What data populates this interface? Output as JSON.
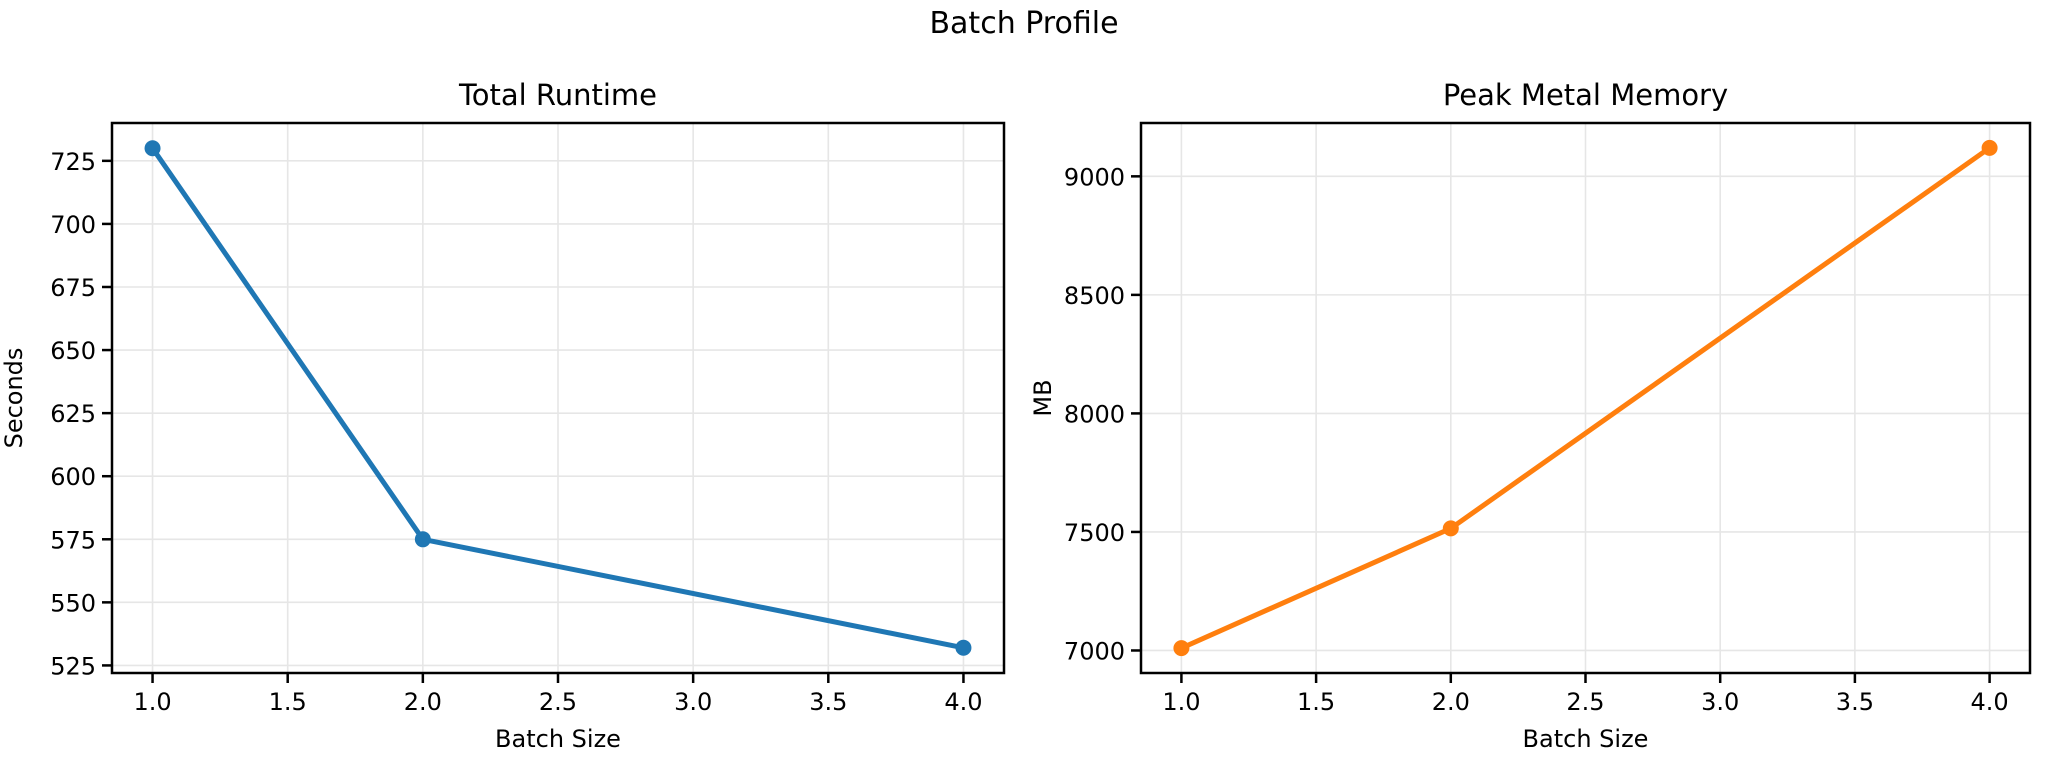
{
  "figure": {
    "suptitle": "Batch Profile",
    "background": "#ffffff",
    "text_color": "#000000",
    "grid_color": "#e6e6e6",
    "spine_color": "#000000"
  },
  "chart_data": [
    {
      "type": "line",
      "title": "Total Runtime",
      "xlabel": "Batch Size",
      "ylabel": "Seconds",
      "x": [
        1,
        2,
        4
      ],
      "y": [
        730,
        575,
        532
      ],
      "series_color": "#1f77b4",
      "marker": "circle",
      "grid": true,
      "legend": null,
      "xlim": [
        0.85,
        4.15
      ],
      "ylim": [
        522,
        740
      ],
      "xticks": [
        1.0,
        1.5,
        2.0,
        2.5,
        3.0,
        3.5,
        4.0
      ],
      "xtick_labels": [
        "1.0",
        "1.5",
        "2.0",
        "2.5",
        "3.0",
        "3.5",
        "4.0"
      ],
      "yticks": [
        525,
        550,
        575,
        600,
        625,
        650,
        675,
        700,
        725
      ],
      "ytick_labels": [
        "525",
        "550",
        "575",
        "600",
        "625",
        "650",
        "675",
        "700",
        "725"
      ]
    },
    {
      "type": "line",
      "title": "Peak Metal Memory",
      "xlabel": "Batch Size",
      "ylabel": "MB",
      "x": [
        1,
        2,
        4
      ],
      "y": [
        7010,
        7515,
        9120
      ],
      "series_color": "#ff7f0e",
      "marker": "circle",
      "grid": true,
      "legend": null,
      "xlim": [
        0.85,
        4.15
      ],
      "ylim": [
        6905,
        9225
      ],
      "xticks": [
        1.0,
        1.5,
        2.0,
        2.5,
        3.0,
        3.5,
        4.0
      ],
      "xtick_labels": [
        "1.0",
        "1.5",
        "2.0",
        "2.5",
        "3.0",
        "3.5",
        "4.0"
      ],
      "yticks": [
        7000,
        7500,
        8000,
        8500,
        9000
      ],
      "ytick_labels": [
        "7000",
        "7500",
        "8000",
        "8500",
        "9000"
      ]
    }
  ]
}
